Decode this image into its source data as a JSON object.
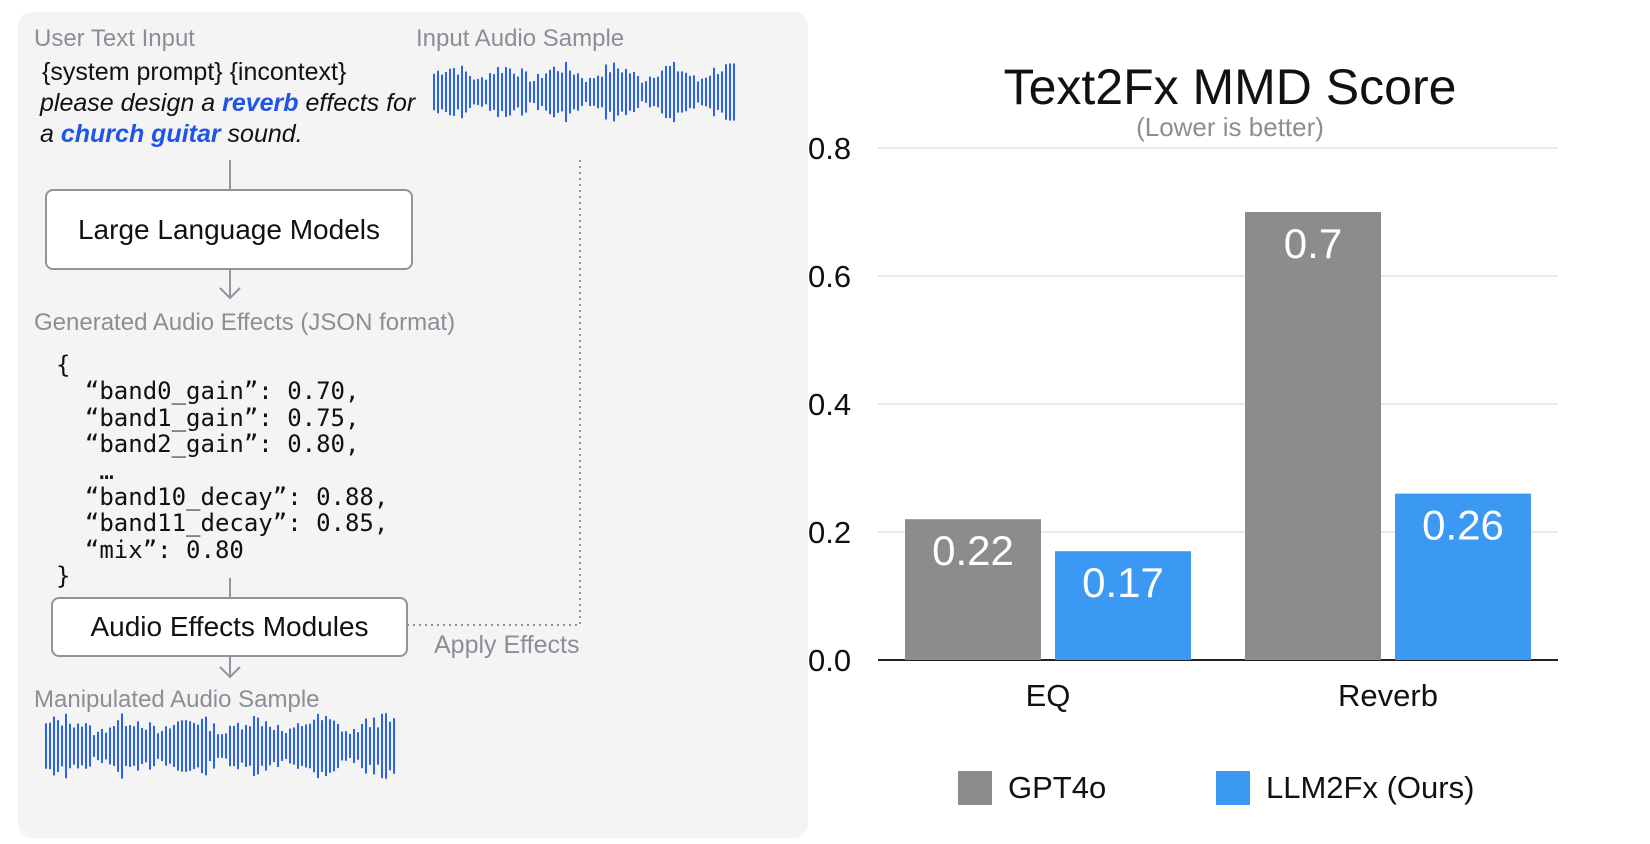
{
  "diagram": {
    "user_text_label": "User Text Input",
    "prompt": {
      "line1": "{system prompt} {incontext}",
      "line2_pre": "please design a ",
      "line2_kw": "reverb",
      "line2_post": " effects for",
      "line3_pre": "a ",
      "line3_kw": "church guitar",
      "line3_post": " sound."
    },
    "input_audio_label": "Input Audio Sample",
    "llm_box": "Large Language Models",
    "generated_label": "Generated Audio Effects (JSON format)",
    "json_lines": [
      "{",
      "  “band0_gain”: 0.70,",
      "  “band1_gain”: 0.75,",
      "  “band2_gain”: 0.80,",
      "   …",
      "  “band10_decay”: 0.88,",
      "  “band11_decay”: 0.85,",
      "  “mix”: 0.80",
      "}"
    ],
    "afx_box": "Audio Effects Modules",
    "apply_label": "Apply Effects",
    "output_audio_label": "Manipulated Audio Sample",
    "colors": {
      "keyword": "#1f55e6",
      "waveform": "#2a62e8",
      "connector": "#8f959c"
    }
  },
  "chart_data": {
    "type": "bar",
    "title": "Text2Fx MMD Score",
    "subtitle": "(Lower is better)",
    "categories": [
      "EQ",
      "Reverb"
    ],
    "series": [
      {
        "name": "GPT4o",
        "values": [
          0.22,
          0.7
        ],
        "labels": [
          "0.22",
          "0.7"
        ],
        "color": "#8c8c8c"
      },
      {
        "name": "LLM2Fx (Ours)",
        "values": [
          0.17,
          0.26
        ],
        "labels": [
          "0.17",
          "0.26"
        ],
        "color": "#3b99f3"
      }
    ],
    "yticks": [
      "0.0",
      "0.2",
      "0.4",
      "0.6",
      "0.8"
    ],
    "ylim": [
      0,
      0.8
    ],
    "grid": true,
    "legend_position": "bottom"
  }
}
